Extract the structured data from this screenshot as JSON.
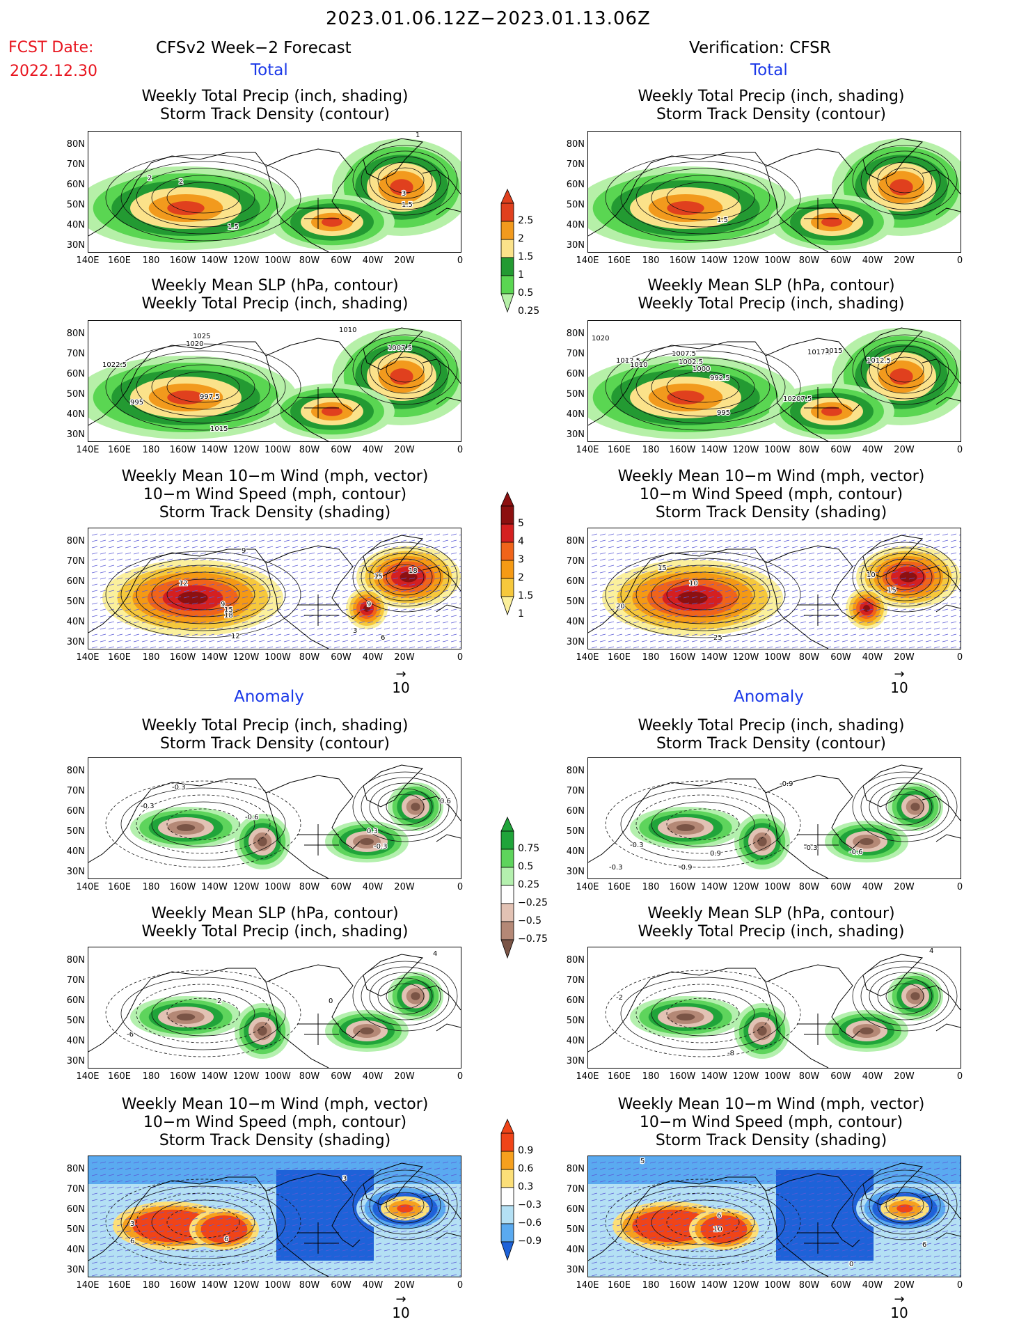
{
  "header": {
    "date_range": "2023.01.06.12Z−2023.01.13.06Z",
    "fcst_label": "FCST Date:",
    "fcst_date": "2022.12.30",
    "left_title": "CFSv2 Week−2 Forecast",
    "right_title": "Verification: CFSR",
    "total_label": "Total",
    "anomaly_label": "Anomaly"
  },
  "panel_titles": {
    "precip_storm": [
      "Weekly Total Precip (inch, shading)",
      "Storm Track Density (contour)"
    ],
    "slp_precip": [
      "Weekly Mean SLP (hPa, contour)",
      "Weekly Total Precip (inch, shading)"
    ],
    "wind_storm": [
      "Weekly Mean 10−m Wind (mph, vector)",
      "10−m Wind Speed (mph, contour)",
      "Storm Track Density (shading)"
    ]
  },
  "lat_labels": [
    "80N",
    "70N",
    "60N",
    "50N",
    "40N",
    "30N"
  ],
  "lon_labels": [
    "140E",
    "160E",
    "180",
    "160W",
    "140W",
    "120W",
    "100W",
    "80W",
    "60W",
    "40W",
    "20W",
    "0"
  ],
  "vector_ref": "10",
  "colorbars": {
    "precip_total": {
      "labels": [
        "2.5",
        "2",
        "1.5",
        "1",
        "0.5",
        "0.25"
      ],
      "colors": [
        "#e0401e",
        "#f29a1d",
        "#fbe28a",
        "#239a32",
        "#5ad652",
        "#b6f0a8"
      ]
    },
    "storm_total": {
      "labels": [
        "5",
        "4",
        "3",
        "2",
        "1.5",
        "1"
      ],
      "colors": [
        "#8c1010",
        "#d42020",
        "#f0641a",
        "#f59a14",
        "#f6c83c",
        "#fbf09c"
      ]
    },
    "precip_anom": {
      "labels": [
        "0.75",
        "0.5",
        "0.25",
        "−0.25",
        "−0.5",
        "−0.75"
      ],
      "colors": [
        "#20a43a",
        "#5ed45c",
        "#b4f0ae",
        "#ffffff",
        "#e2c2b4",
        "#b48876",
        "#7a5446"
      ]
    },
    "storm_anom": {
      "labels": [
        "0.9",
        "0.6",
        "0.3",
        "−0.3",
        "−0.6",
        "−0.9"
      ],
      "colors": [
        "#f04418",
        "#f6a01e",
        "#fcdf78",
        "#ffffff",
        "#b4e0f4",
        "#5aaaf0",
        "#1e62d8"
      ]
    }
  },
  "map_labels": {
    "p1": [
      "2",
      "2",
      "1.5",
      "1",
      "3",
      "1.5"
    ],
    "p2": [
      "1025",
      "1020",
      "1022.5",
      "995",
      "997.5",
      "1015",
      "1010",
      "1007.5"
    ],
    "p3": [
      "12",
      "15",
      "18",
      "9",
      "12",
      "9",
      "15",
      "18",
      "3",
      "6",
      "9"
    ],
    "p4": [
      "-0.3",
      "-0.3",
      "-0.6",
      "0.3",
      "-0.3",
      "0.6"
    ],
    "p5": [
      "2",
      "-6",
      "0",
      "4"
    ],
    "p6": [
      "3",
      "6",
      "6",
      "0",
      "3"
    ],
    "v1": [
      "1.5",
      "1.5"
    ],
    "v2": [
      "1020",
      "1012.5",
      "1010",
      "1007.5",
      "1002.5",
      "992.5",
      "1000",
      "995",
      "1017.5",
      "1015",
      "10207.5",
      "1012.5"
    ],
    "v3": [
      "15",
      "10",
      "20",
      "25",
      "10",
      "15",
      "10"
    ],
    "v4": [
      "-0.9",
      "-0.3",
      "-0.3",
      "-0.9",
      "0.9",
      "-0.3",
      "-0.6"
    ],
    "v5": [
      "-2",
      "-8",
      "4"
    ],
    "v6": [
      "5",
      "6",
      "10",
      "0",
      "6"
    ]
  }
}
